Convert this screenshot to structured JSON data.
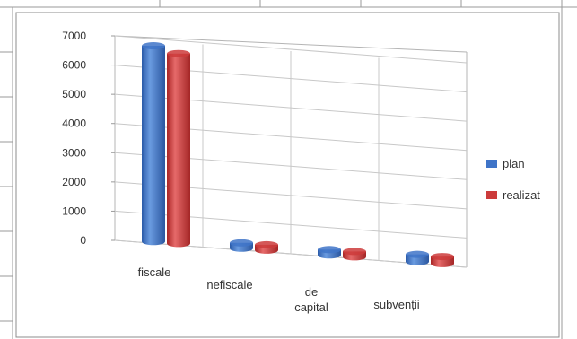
{
  "chart_data": {
    "type": "bar",
    "categories": [
      "fiscale",
      "nefiscale",
      "de capital",
      "subvenții"
    ],
    "series": [
      {
        "name": "plan",
        "values": [
          6700,
          150,
          120,
          250
        ],
        "color": "#3f74c8"
      },
      {
        "name": "realizat",
        "values": [
          6500,
          120,
          100,
          240
        ],
        "color": "#cc3b3b"
      }
    ],
    "yticks": [
      "0",
      "1000",
      "2000",
      "3000",
      "4000",
      "5000",
      "6000",
      "7000"
    ],
    "ylim": [
      0,
      7000
    ],
    "grid": true,
    "legend_position": "right",
    "style": "3d-cylinder"
  }
}
